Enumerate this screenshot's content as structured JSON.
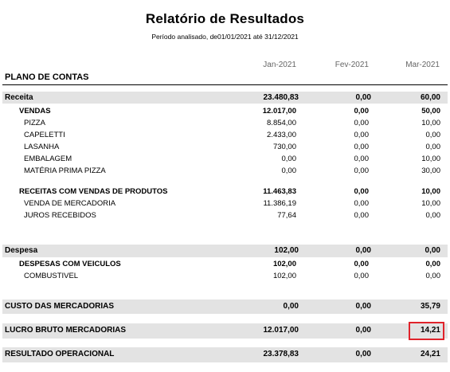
{
  "report": {
    "title": "Relatório de Resultados",
    "period": "Período analisado, de01/01/2021  até  31/12/2021",
    "plan_header": "PLANO DE CONTAS",
    "columns": [
      "Jan-2021",
      "Fev-2021",
      "Mar-2021"
    ]
  },
  "rows": {
    "receita": {
      "label": "Receita",
      "values": [
        "23.480,83",
        "0,00",
        "60,00"
      ]
    },
    "vendas": {
      "label": "VENDAS",
      "values": [
        "12.017,00",
        "0,00",
        "50,00"
      ]
    },
    "pizza": {
      "label": "PIZZA",
      "values": [
        "8.854,00",
        "0,00",
        "10,00"
      ]
    },
    "capeletti": {
      "label": "CAPELETTI",
      "values": [
        "2.433,00",
        "0,00",
        "0,00"
      ]
    },
    "lasanha": {
      "label": "LASANHA",
      "values": [
        "730,00",
        "0,00",
        "0,00"
      ]
    },
    "embalagem": {
      "label": "EMBALAGEM",
      "values": [
        "0,00",
        "0,00",
        "10,00"
      ]
    },
    "materia": {
      "label": "MATÉRIA PRIMA PIZZA",
      "values": [
        "0,00",
        "0,00",
        "30,00"
      ]
    },
    "receitas_vendas": {
      "label": "RECEITAS COM VENDAS DE PRODUTOS",
      "values": [
        "11.463,83",
        "0,00",
        "10,00"
      ]
    },
    "venda_mercadoria": {
      "label": "VENDA DE MERCADORIA",
      "values": [
        "11.386,19",
        "0,00",
        "10,00"
      ]
    },
    "juros": {
      "label": "JUROS RECEBIDOS",
      "values": [
        "77,64",
        "0,00",
        "0,00"
      ]
    },
    "despesa": {
      "label": "Despesa",
      "values": [
        "102,00",
        "0,00",
        "0,00"
      ]
    },
    "despesas_veiculos": {
      "label": "DESPESAS COM VEICULOS",
      "values": [
        "102,00",
        "0,00",
        "0,00"
      ]
    },
    "combustivel": {
      "label": "COMBUSTIVEL",
      "values": [
        "102,00",
        "0,00",
        "0,00"
      ]
    },
    "custo": {
      "label": "CUSTO DAS MERCADORIAS",
      "values": [
        "0,00",
        "0,00",
        "35,79"
      ]
    },
    "lucro": {
      "label": "LUCRO BRUTO MERCADORIAS",
      "values": [
        "12.017,00",
        "0,00",
        "14,21"
      ]
    },
    "resultado": {
      "label": "RESULTADO OPERACIONAL",
      "values": [
        "23.378,83",
        "0,00",
        "24,21"
      ]
    }
  },
  "highlight_color": "#e0232b"
}
